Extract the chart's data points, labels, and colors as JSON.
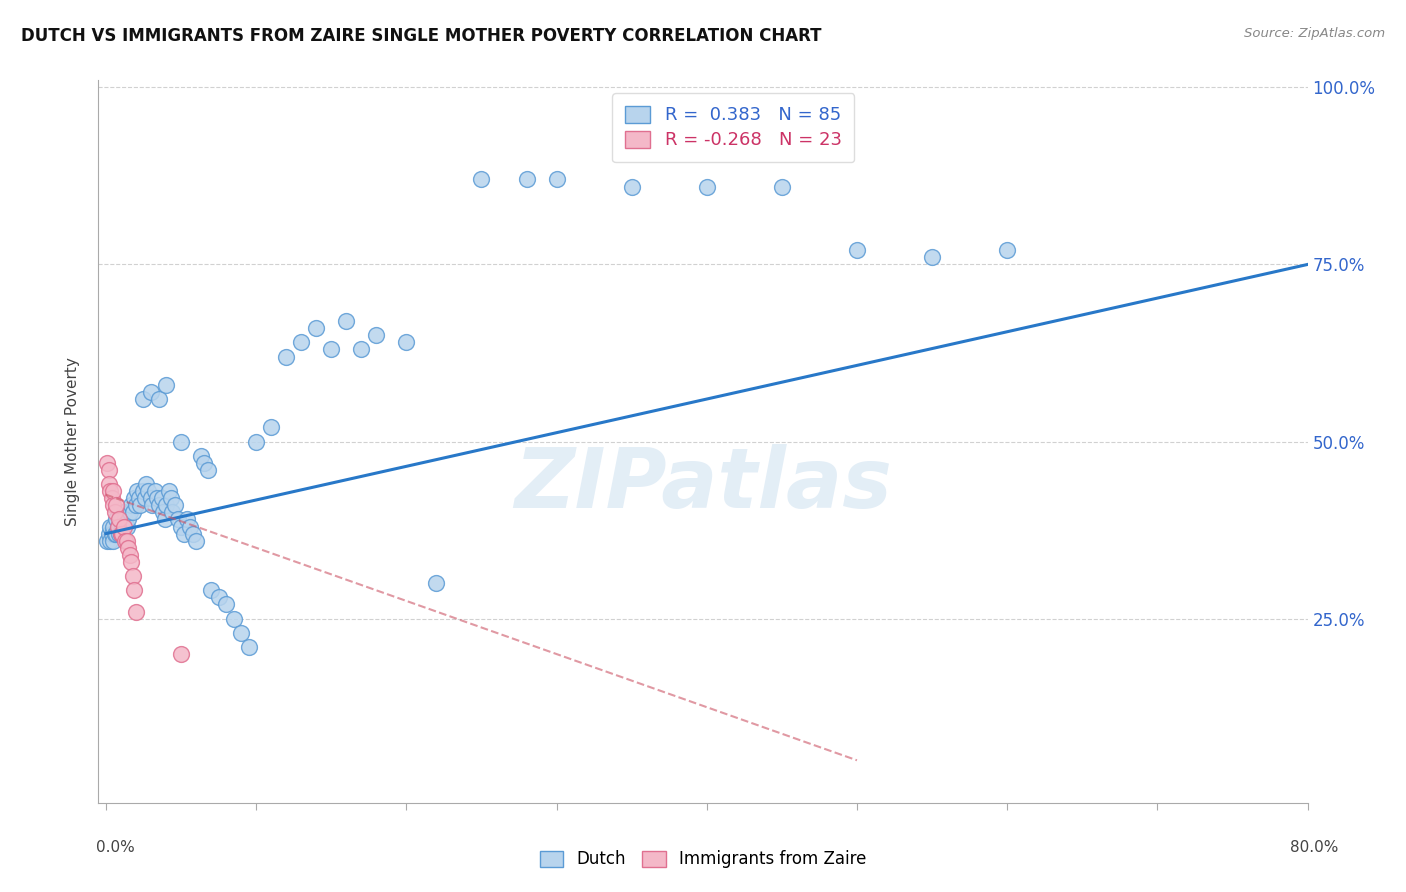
{
  "title": "DUTCH VS IMMIGRANTS FROM ZAIRE SINGLE MOTHER POVERTY CORRELATION CHART",
  "source": "Source: ZipAtlas.com",
  "ylabel": "Single Mother Poverty",
  "legend1_text": "R =  0.383   N = 85",
  "legend2_text": "R = -0.268   N = 23",
  "blue_face": "#b8d4ed",
  "blue_edge": "#5b9bd5",
  "pink_face": "#f4b8c8",
  "pink_edge": "#e07090",
  "line_blue": "#2878c8",
  "line_pink": "#cc5566",
  "watermark": "ZIPatlas",
  "watermark_color": "#cce0f0",
  "legend_label1": "Dutch",
  "legend_label2": "Immigrants from Zaire",
  "blue_x": [
    0.001,
    0.002,
    0.003,
    0.003,
    0.004,
    0.005,
    0.005,
    0.006,
    0.007,
    0.007,
    0.008,
    0.009,
    0.01,
    0.01,
    0.011,
    0.012,
    0.013,
    0.014,
    0.015,
    0.016,
    0.017,
    0.018,
    0.019,
    0.02,
    0.021,
    0.022,
    0.023,
    0.025,
    0.026,
    0.027,
    0.028,
    0.03,
    0.031,
    0.033,
    0.034,
    0.035,
    0.037,
    0.038,
    0.039,
    0.04,
    0.042,
    0.043,
    0.044,
    0.046,
    0.048,
    0.05,
    0.052,
    0.054,
    0.056,
    0.058,
    0.06,
    0.063,
    0.065,
    0.068,
    0.07,
    0.075,
    0.08,
    0.085,
    0.09,
    0.095,
    0.1,
    0.11,
    0.12,
    0.13,
    0.14,
    0.15,
    0.16,
    0.17,
    0.18,
    0.2,
    0.22,
    0.25,
    0.28,
    0.3,
    0.35,
    0.4,
    0.45,
    0.5,
    0.55,
    0.6,
    0.025,
    0.03,
    0.035,
    0.04,
    0.05
  ],
  "blue_y": [
    0.36,
    0.37,
    0.38,
    0.36,
    0.37,
    0.38,
    0.36,
    0.37,
    0.39,
    0.37,
    0.38,
    0.37,
    0.39,
    0.37,
    0.38,
    0.4,
    0.39,
    0.38,
    0.39,
    0.4,
    0.41,
    0.4,
    0.42,
    0.41,
    0.43,
    0.42,
    0.41,
    0.43,
    0.42,
    0.44,
    0.43,
    0.42,
    0.41,
    0.43,
    0.42,
    0.41,
    0.42,
    0.4,
    0.39,
    0.41,
    0.43,
    0.42,
    0.4,
    0.41,
    0.39,
    0.38,
    0.37,
    0.39,
    0.38,
    0.37,
    0.36,
    0.48,
    0.47,
    0.46,
    0.29,
    0.28,
    0.27,
    0.25,
    0.23,
    0.21,
    0.5,
    0.52,
    0.62,
    0.64,
    0.66,
    0.63,
    0.67,
    0.63,
    0.65,
    0.64,
    0.3,
    0.87,
    0.87,
    0.87,
    0.86,
    0.86,
    0.86,
    0.77,
    0.76,
    0.77,
    0.56,
    0.57,
    0.56,
    0.58,
    0.5
  ],
  "pink_x": [
    0.001,
    0.002,
    0.002,
    0.003,
    0.004,
    0.005,
    0.005,
    0.006,
    0.007,
    0.008,
    0.009,
    0.01,
    0.011,
    0.012,
    0.013,
    0.014,
    0.015,
    0.016,
    0.017,
    0.018,
    0.019,
    0.02,
    0.05
  ],
  "pink_y": [
    0.47,
    0.46,
    0.44,
    0.43,
    0.42,
    0.41,
    0.43,
    0.4,
    0.41,
    0.38,
    0.39,
    0.37,
    0.37,
    0.38,
    0.36,
    0.36,
    0.35,
    0.34,
    0.33,
    0.31,
    0.29,
    0.26,
    0.2
  ],
  "line_blue_x0": 0.0,
  "line_blue_y0": 0.37,
  "line_blue_x1": 0.8,
  "line_blue_y1": 0.75,
  "line_pink_x0": 0.0,
  "line_pink_y0": 0.425,
  "line_pink_x1": 0.5,
  "line_pink_y1": 0.05,
  "xmin": 0.0,
  "xmax": 0.8,
  "ymin": 0.0,
  "ymax": 1.0,
  "ytick_vals": [
    0.25,
    0.5,
    0.75,
    1.0
  ],
  "ytick_labels": [
    "25.0%",
    "50.0%",
    "75.0%",
    "100.0%"
  ],
  "xtick_label_left": "0.0%",
  "xtick_label_right": "80.0%"
}
